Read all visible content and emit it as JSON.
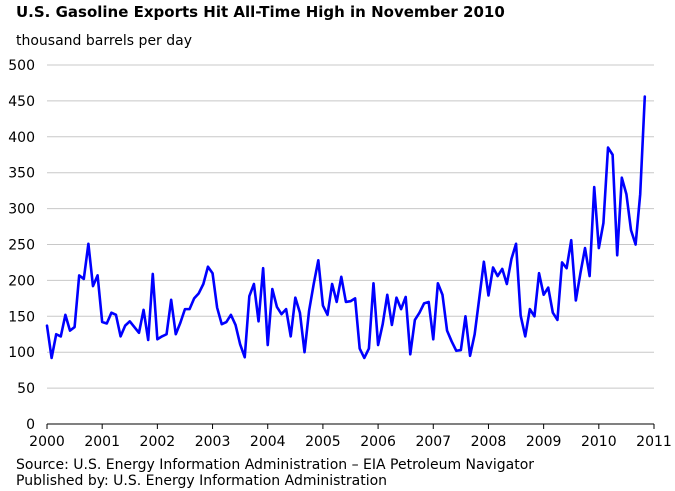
{
  "chart_data": {
    "type": "line",
    "title": "U.S. Gasoline Exports Hit All-Time High in November 2010",
    "units_label": "thousand barrels per day",
    "source": "Source:  U.S. Energy Information Administration  –  EIA Petroleum Navigator",
    "published": "Published by:  U.S. Energy Information Administration",
    "xlim": [
      2000,
      2011
    ],
    "ylim": [
      0,
      500
    ],
    "x_ticks": [
      "2000",
      "2001",
      "2002",
      "2003",
      "2004",
      "2005",
      "2006",
      "2007",
      "2008",
      "2009",
      "2010",
      "2011"
    ],
    "y_ticks": [
      "0",
      "50",
      "100",
      "150",
      "200",
      "250",
      "300",
      "350",
      "400",
      "450",
      "500"
    ],
    "grid": "horizontal",
    "line_color": "#0000ff",
    "frequency": "monthly",
    "series": [
      {
        "start": "2000-01",
        "values": [
          137,
          92,
          125,
          122,
          152,
          130,
          135,
          207,
          202,
          251,
          192,
          207,
          142,
          140,
          155,
          152,
          122,
          137,
          143,
          135,
          127,
          159,
          117,
          209,
          118,
          122,
          125,
          173,
          125,
          141,
          160,
          160,
          175,
          182,
          195,
          219,
          210,
          162,
          139,
          142,
          152,
          138,
          111,
          93,
          178,
          195,
          143,
          217,
          110,
          188,
          163,
          153,
          160,
          122,
          176,
          155,
          100,
          158,
          195,
          228,
          165,
          152,
          195,
          170,
          205,
          170,
          171,
          175,
          105,
          92,
          105,
          196,
          110,
          139,
          180,
          138,
          176,
          160,
          177,
          97,
          145,
          155,
          168,
          170,
          118,
          196,
          180,
          130,
          115,
          102,
          103,
          150,
          95,
          125,
          175,
          226,
          179,
          218,
          206,
          216,
          195,
          230,
          251,
          151,
          122,
          160,
          150,
          210,
          180,
          190,
          155,
          145,
          225,
          217,
          256,
          172,
          210,
          245,
          206,
          330,
          245,
          280,
          385,
          375,
          235,
          343,
          320,
          270,
          250,
          320,
          456
        ]
      }
    ]
  }
}
